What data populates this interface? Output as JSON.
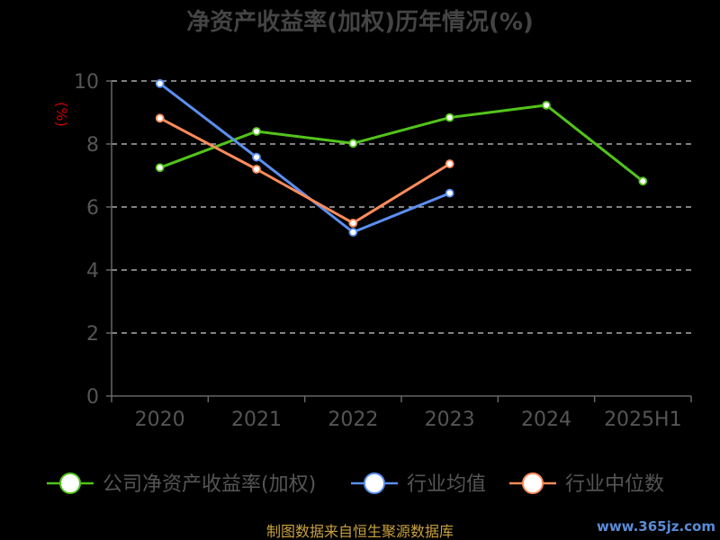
{
  "chart_data": {
    "type": "line",
    "title": "净资产收益率(加权)历年情况(%)",
    "ylabel": "(%)",
    "categories": [
      "2020",
      "2021",
      "2022",
      "2023",
      "2024",
      "2025H1"
    ],
    "ylim": [
      0,
      10
    ],
    "yticks": [
      0,
      2,
      4,
      6,
      8,
      10
    ],
    "grid": true,
    "legend_position": "bottom",
    "series": [
      {
        "name": "公司净资产收益率(加权)",
        "color": "#52c41a",
        "values": [
          7.25,
          8.4,
          8.02,
          8.84,
          9.23,
          6.82
        ]
      },
      {
        "name": "行业均值",
        "color": "#5b8ff0",
        "values": [
          9.92,
          7.58,
          5.2,
          6.44,
          null,
          null
        ]
      },
      {
        "name": "行业中位数",
        "color": "#ff8c5a",
        "values": [
          8.82,
          7.2,
          5.49,
          7.37,
          null,
          null
        ]
      }
    ]
  },
  "footer": {
    "source": "制图数据来自恒生聚源数据库",
    "watermark": "www.365jz.com"
  }
}
